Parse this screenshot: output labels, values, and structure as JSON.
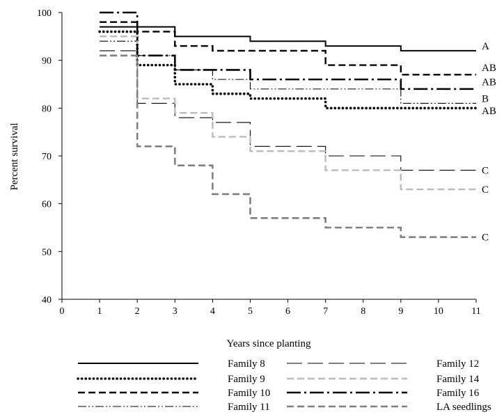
{
  "chart_data": {
    "type": "line",
    "xlabel": "Years since planting",
    "ylabel": "Percent survival",
    "xlim": [
      0,
      11
    ],
    "ylim": [
      40,
      100
    ],
    "x_ticks": [
      "0",
      "1",
      "2",
      "3",
      "4",
      "5",
      "6",
      "7",
      "8",
      "9",
      "10",
      "11"
    ],
    "y_ticks": [
      "40",
      "50",
      "60",
      "70",
      "80",
      "90",
      "100"
    ],
    "step": true,
    "grid": false,
    "legend_position": "bottom",
    "series": [
      {
        "name": "Family 8",
        "color": "#000000",
        "dash": "solid",
        "x": [
          1,
          2,
          3,
          5,
          7,
          9,
          11
        ],
        "y": [
          97,
          97,
          95,
          94,
          93,
          92,
          92
        ],
        "letter": "A"
      },
      {
        "name": "Family 9",
        "color": "#000000",
        "dash": "dotted",
        "x": [
          1,
          2,
          3,
          4,
          5,
          7,
          9,
          11
        ],
        "y": [
          96,
          89,
          85,
          83,
          82,
          80,
          80,
          80
        ],
        "letter": "AB"
      },
      {
        "name": "Family 10",
        "color": "#000000",
        "dash": "dashed",
        "x": [
          1,
          2,
          3,
          4,
          7,
          9,
          11
        ],
        "y": [
          98,
          96,
          93,
          92,
          89,
          87,
          87
        ],
        "letter": "AB"
      },
      {
        "name": "Family 11",
        "color": "#000000",
        "dash": "dashdotdot",
        "x": [
          1,
          2,
          3,
          4,
          5,
          9,
          11
        ],
        "y": [
          94,
          91,
          88,
          86,
          84,
          81,
          81
        ],
        "letter": "AB"
      },
      {
        "name": "Family 12",
        "color": "#000000",
        "dash": "longdash",
        "x": [
          1,
          2,
          3,
          4,
          5,
          7,
          9,
          11
        ],
        "y": [
          92,
          81,
          78,
          77,
          72,
          70,
          67,
          67
        ],
        "letter": "C"
      },
      {
        "name": "Family 14",
        "color": "#bbbbbb",
        "dash": "dashed",
        "x": [
          1,
          2,
          3,
          4,
          5,
          7,
          9,
          11
        ],
        "y": [
          95,
          82,
          79,
          74,
          71,
          67,
          63,
          63
        ],
        "letter": "C"
      },
      {
        "name": "Family 16",
        "color": "#000000",
        "dash": "longdashdot",
        "x": [
          1,
          2,
          3,
          5,
          9,
          11
        ],
        "y": [
          100,
          91,
          88,
          86,
          84,
          84
        ],
        "letter": "B"
      },
      {
        "name": "LA seedlings",
        "color": "#7f7f7f",
        "dash": "dashed_thick",
        "x": [
          1,
          2,
          3,
          4,
          5,
          7,
          9,
          11
        ],
        "y": [
          91,
          72,
          68,
          62,
          57,
          55,
          53,
          53
        ],
        "letter": "C"
      }
    ],
    "annotations": [
      {
        "text": "A",
        "y": 93
      },
      {
        "text": "AB",
        "y": 88.5
      },
      {
        "text": "AB",
        "y": 85.5
      },
      {
        "text": "B",
        "y": 82
      },
      {
        "text": "AB",
        "y": 79.5
      },
      {
        "text": "C",
        "y": 67
      },
      {
        "text": "C",
        "y": 63
      },
      {
        "text": "C",
        "y": 53
      }
    ]
  }
}
